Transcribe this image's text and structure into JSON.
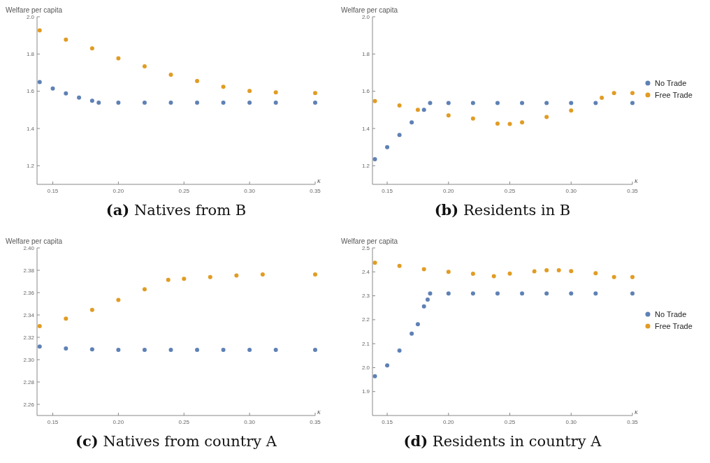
{
  "chart_data": [
    {
      "type": "scatter",
      "title": "(a) Natives from B",
      "xlabel": "κ",
      "ylabel": "Welfare per capita",
      "marker": "circle",
      "legend": false,
      "xlim": [
        0.138,
        0.35
      ],
      "ylim": [
        1.1,
        2.0
      ],
      "xticks": [
        {
          "value": 0.15,
          "label": "0.15"
        },
        {
          "value": 0.2,
          "label": "0.20"
        },
        {
          "value": 0.25,
          "label": "0.25"
        },
        {
          "value": 0.3,
          "label": "0.30"
        },
        {
          "value": 0.35,
          "label": "0.35"
        }
      ],
      "yticks": [
        {
          "value": 1.2,
          "label": "1.2"
        },
        {
          "value": 1.4,
          "label": "1.4"
        },
        {
          "value": 1.6,
          "label": "1.6"
        },
        {
          "value": 1.8,
          "label": "1.8"
        },
        {
          "value": 2.0,
          "label": "2.0"
        }
      ],
      "series": [
        {
          "color": "#5e81b5",
          "x": [
            0.14,
            0.15,
            0.16,
            0.17,
            0.18,
            0.185,
            0.2,
            0.22,
            0.24,
            0.26,
            0.28,
            0.3,
            0.32,
            0.35
          ],
          "values": [
            1.649,
            1.615,
            1.588,
            1.566,
            1.549,
            1.539,
            1.539,
            1.539,
            1.539,
            1.539,
            1.539,
            1.539,
            1.539,
            1.539
          ]
        },
        {
          "color": "#e19c24",
          "x": [
            0.14,
            0.16,
            0.18,
            0.2,
            0.22,
            0.24,
            0.26,
            0.28,
            0.3,
            0.32,
            0.35
          ],
          "values": [
            1.927,
            1.877,
            1.83,
            1.777,
            1.734,
            1.689,
            1.655,
            1.624,
            1.602,
            1.594,
            1.59
          ]
        }
      ]
    },
    {
      "type": "scatter",
      "title": "(b) Residents in B",
      "xlabel": "κ",
      "ylabel": "Welfare per capita",
      "marker": "circle",
      "legend": "right",
      "xlim": [
        0.138,
        0.35
      ],
      "ylim": [
        1.1,
        2.0
      ],
      "xticks": [
        {
          "value": 0.15,
          "label": "0.15"
        },
        {
          "value": 0.2,
          "label": "0.20"
        },
        {
          "value": 0.25,
          "label": "0.25"
        },
        {
          "value": 0.3,
          "label": "0.30"
        },
        {
          "value": 0.35,
          "label": "0.35"
        }
      ],
      "yticks": [
        {
          "value": 1.2,
          "label": "1.2"
        },
        {
          "value": 1.4,
          "label": "1.4"
        },
        {
          "value": 1.6,
          "label": "1.6"
        },
        {
          "value": 1.8,
          "label": "1.8"
        },
        {
          "value": 2.0,
          "label": "2.0"
        }
      ],
      "series": [
        {
          "name": "No Trade",
          "color": "#5e81b5",
          "x": [
            0.14,
            0.15,
            0.16,
            0.17,
            0.18,
            0.185,
            0.2,
            0.22,
            0.24,
            0.26,
            0.28,
            0.3,
            0.32,
            0.35
          ],
          "values": [
            1.235,
            1.3,
            1.365,
            1.433,
            1.5,
            1.537,
            1.537,
            1.537,
            1.537,
            1.537,
            1.537,
            1.537,
            1.537,
            1.537
          ]
        },
        {
          "name": "Free Trade",
          "color": "#e19c24",
          "x": [
            0.14,
            0.16,
            0.175,
            0.2,
            0.22,
            0.24,
            0.25,
            0.26,
            0.28,
            0.3,
            0.325,
            0.335,
            0.35
          ],
          "values": [
            1.547,
            1.524,
            1.5,
            1.47,
            1.453,
            1.426,
            1.424,
            1.433,
            1.462,
            1.497,
            1.565,
            1.59,
            1.59
          ]
        }
      ]
    },
    {
      "type": "scatter",
      "title": "(c) Natives from country A",
      "xlabel": "κ",
      "ylabel": "Welfare per capita",
      "marker": "circle",
      "legend": false,
      "xlim": [
        0.138,
        0.35
      ],
      "ylim": [
        2.25,
        2.4
      ],
      "xticks": [
        {
          "value": 0.15,
          "label": "0.15"
        },
        {
          "value": 0.2,
          "label": "0.20"
        },
        {
          "value": 0.25,
          "label": "0.25"
        },
        {
          "value": 0.3,
          "label": "0.30"
        },
        {
          "value": 0.35,
          "label": "0.35"
        }
      ],
      "yticks": [
        {
          "value": 2.26,
          "label": "2.26"
        },
        {
          "value": 2.28,
          "label": "2.28"
        },
        {
          "value": 2.3,
          "label": "2.30"
        },
        {
          "value": 2.32,
          "label": "2.32"
        },
        {
          "value": 2.34,
          "label": "2.34"
        },
        {
          "value": 2.36,
          "label": "2.36"
        },
        {
          "value": 2.38,
          "label": "2.38"
        },
        {
          "value": 2.4,
          "label": "2.40"
        }
      ],
      "series": [
        {
          "color": "#5e81b5",
          "x": [
            0.14,
            0.16,
            0.18,
            0.2,
            0.22,
            0.24,
            0.26,
            0.28,
            0.3,
            0.32,
            0.35
          ],
          "values": [
            2.3117,
            2.31,
            2.3092,
            2.3088,
            2.3088,
            2.3088,
            2.3088,
            2.3088,
            2.3088,
            2.3088,
            2.3088
          ]
        },
        {
          "color": "#e19c24",
          "x": [
            0.14,
            0.16,
            0.18,
            0.2,
            0.22,
            0.238,
            0.25,
            0.27,
            0.29,
            0.31,
            0.35
          ],
          "values": [
            2.33,
            2.3367,
            2.3445,
            2.3534,
            2.363,
            2.3714,
            2.3724,
            2.3739,
            2.3753,
            2.3763,
            2.3763
          ]
        }
      ]
    },
    {
      "type": "scatter",
      "title": "(d) Residents in country A",
      "xlabel": "κ",
      "ylabel": "Welfare per capita",
      "marker": "circle",
      "legend": "right",
      "xlim": [
        0.138,
        0.35
      ],
      "ylim": [
        1.8,
        2.5
      ],
      "xticks": [
        {
          "value": 0.15,
          "label": "0.15"
        },
        {
          "value": 0.2,
          "label": "0.20"
        },
        {
          "value": 0.25,
          "label": "0.25"
        },
        {
          "value": 0.3,
          "label": "0.30"
        },
        {
          "value": 0.35,
          "label": "0.35"
        }
      ],
      "yticks": [
        {
          "value": 1.9,
          "label": "1.9"
        },
        {
          "value": 2.0,
          "label": "2.0"
        },
        {
          "value": 2.1,
          "label": "2.1"
        },
        {
          "value": 2.2,
          "label": "2.2"
        },
        {
          "value": 2.3,
          "label": "2.3"
        },
        {
          "value": 2.4,
          "label": "2.4"
        },
        {
          "value": 2.5,
          "label": "2.5"
        }
      ],
      "series": [
        {
          "name": "No Trade",
          "color": "#5e81b5",
          "x": [
            0.14,
            0.15,
            0.16,
            0.17,
            0.175,
            0.18,
            0.183,
            0.185,
            0.2,
            0.22,
            0.24,
            0.26,
            0.28,
            0.3,
            0.32,
            0.35
          ],
          "values": [
            1.964,
            2.009,
            2.071,
            2.142,
            2.181,
            2.256,
            2.284,
            2.31,
            2.31,
            2.31,
            2.31,
            2.31,
            2.31,
            2.31,
            2.31,
            2.31
          ]
        },
        {
          "name": "Free Trade",
          "color": "#e19c24",
          "x": [
            0.14,
            0.16,
            0.18,
            0.2,
            0.22,
            0.237,
            0.25,
            0.27,
            0.28,
            0.29,
            0.3,
            0.32,
            0.335,
            0.35
          ],
          "values": [
            2.438,
            2.425,
            2.411,
            2.4,
            2.392,
            2.382,
            2.393,
            2.402,
            2.407,
            2.407,
            2.403,
            2.394,
            2.378,
            2.378
          ]
        }
      ]
    }
  ]
}
